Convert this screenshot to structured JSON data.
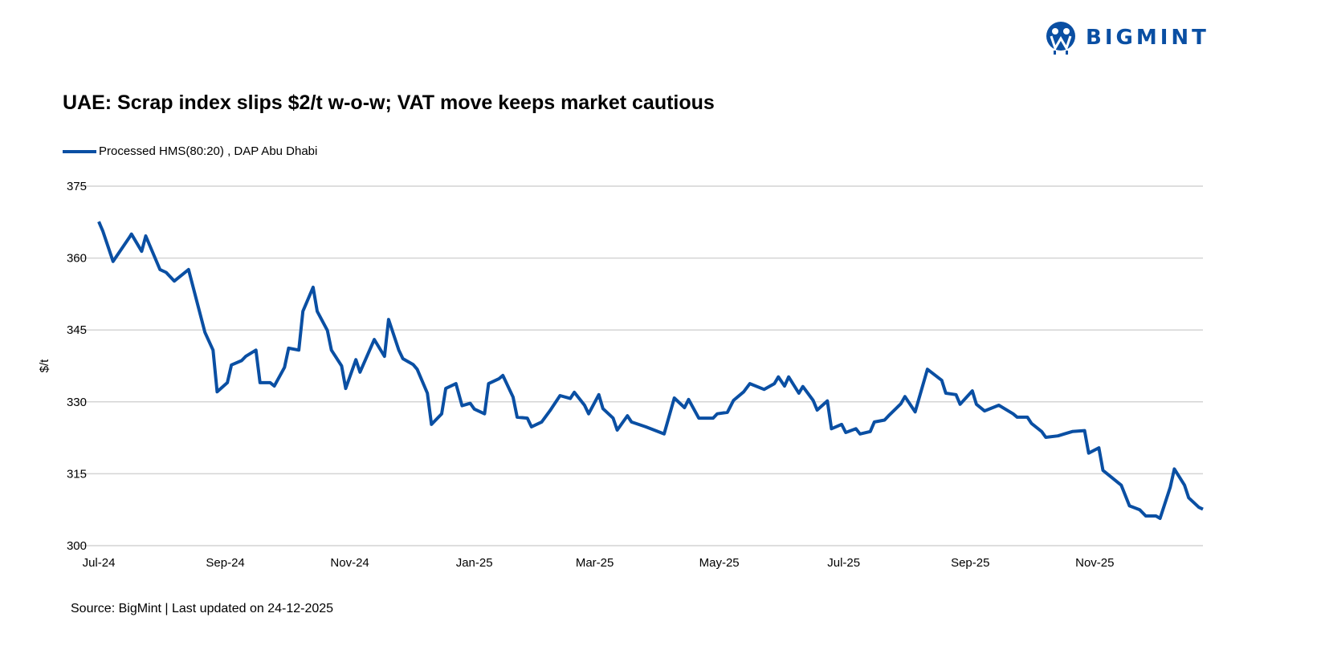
{
  "logo": {
    "text": "BIGMINT",
    "color": "#0a4fa3"
  },
  "source": "Source: BigMint | Last updated on 24-12-2025",
  "chart_data": {
    "type": "line",
    "title": "UAE: Scrap index slips $2/t w-o-w; VAT move keeps market cautious",
    "xlabel": "",
    "ylabel": "$/t",
    "ylim": [
      300,
      375
    ],
    "xlim": [
      "2024-07-01",
      "2025-12-24"
    ],
    "yticks": [
      "300",
      "315",
      "330",
      "345",
      "360",
      "375"
    ],
    "xticks": [
      {
        "date": "2024-07-01",
        "label": "Jul-24"
      },
      {
        "date": "2024-09-01",
        "label": "Sep-24"
      },
      {
        "date": "2024-11-01",
        "label": "Nov-24"
      },
      {
        "date": "2025-01-01",
        "label": "Jan-25"
      },
      {
        "date": "2025-03-01",
        "label": "Mar-25"
      },
      {
        "date": "2025-05-01",
        "label": "May-25"
      },
      {
        "date": "2025-07-01",
        "label": "Jul-25"
      },
      {
        "date": "2025-09-01",
        "label": "Sep-25"
      },
      {
        "date": "2025-11-01",
        "label": "Nov-25"
      }
    ],
    "grid": true,
    "legend_position": "top-left",
    "series": [
      {
        "name": "Processed HMS(80:20) , DAP Abu Dhabi",
        "color": "#0a4fa3",
        "points": [
          [
            "2024-07-01",
            367.6
          ],
          [
            "2024-07-03",
            365.6
          ],
          [
            "2024-07-08",
            359.3
          ],
          [
            "2024-07-16",
            364.3
          ],
          [
            "2024-07-17",
            365
          ],
          [
            "2024-07-22",
            361.4
          ],
          [
            "2024-07-24",
            364.6
          ],
          [
            "2024-07-31",
            357.6
          ],
          [
            "2024-08-03",
            357
          ],
          [
            "2024-08-07",
            355.2
          ],
          [
            "2024-08-14",
            357.6
          ],
          [
            "2024-08-22",
            344.5
          ],
          [
            "2024-08-26",
            340.8
          ],
          [
            "2024-08-28",
            332.1
          ],
          [
            "2024-09-02",
            334
          ],
          [
            "2024-09-04",
            337.7
          ],
          [
            "2024-09-09",
            338.6
          ],
          [
            "2024-09-11",
            339.5
          ],
          [
            "2024-09-16",
            340.8
          ],
          [
            "2024-09-18",
            334
          ],
          [
            "2024-09-23",
            334
          ],
          [
            "2024-09-25",
            333.3
          ],
          [
            "2024-09-30",
            337.2
          ],
          [
            "2024-10-02",
            341.2
          ],
          [
            "2024-10-07",
            340.8
          ],
          [
            "2024-10-09",
            348.9
          ],
          [
            "2024-10-14",
            353.9
          ],
          [
            "2024-10-16",
            348.9
          ],
          [
            "2024-10-21",
            344.9
          ],
          [
            "2024-10-23",
            340.8
          ],
          [
            "2024-10-28",
            337.5
          ],
          [
            "2024-10-30",
            332.8
          ],
          [
            "2024-11-04",
            338.8
          ],
          [
            "2024-11-06",
            336.2
          ],
          [
            "2024-11-13",
            343
          ],
          [
            "2024-11-18",
            339.5
          ],
          [
            "2024-11-20",
            347.2
          ],
          [
            "2024-11-25",
            340.8
          ],
          [
            "2024-11-27",
            339
          ],
          [
            "2024-12-02",
            337.8
          ],
          [
            "2024-12-04",
            336.8
          ],
          [
            "2024-12-09",
            331.8
          ],
          [
            "2024-12-11",
            325.3
          ],
          [
            "2024-12-16",
            327.5
          ],
          [
            "2024-12-18",
            332.8
          ],
          [
            "2024-12-23",
            333.8
          ],
          [
            "2024-12-26",
            329.2
          ],
          [
            "2024-12-30",
            329.7
          ],
          [
            "2025-01-01",
            328.5
          ],
          [
            "2025-01-06",
            327.5
          ],
          [
            "2025-01-08",
            333.8
          ],
          [
            "2025-01-13",
            334.8
          ],
          [
            "2025-01-15",
            335.5
          ],
          [
            "2025-01-20",
            331
          ],
          [
            "2025-01-22",
            326.8
          ],
          [
            "2025-01-27",
            326.6
          ],
          [
            "2025-01-29",
            324.8
          ],
          [
            "2025-02-03",
            325.8
          ],
          [
            "2025-02-07",
            328.1
          ],
          [
            "2025-02-12",
            331.3
          ],
          [
            "2025-02-17",
            330.7
          ],
          [
            "2025-02-19",
            332
          ],
          [
            "2025-02-24",
            329.3
          ],
          [
            "2025-02-26",
            327.5
          ],
          [
            "2025-03-03",
            331.5
          ],
          [
            "2025-03-05",
            328.6
          ],
          [
            "2025-03-10",
            326.6
          ],
          [
            "2025-03-12",
            324.1
          ],
          [
            "2025-03-17",
            327.1
          ],
          [
            "2025-03-19",
            325.8
          ],
          [
            "2025-03-26",
            324.8
          ],
          [
            "2025-04-04",
            323.3
          ],
          [
            "2025-04-09",
            330.8
          ],
          [
            "2025-04-14",
            328.8
          ],
          [
            "2025-04-16",
            330.5
          ],
          [
            "2025-04-21",
            326.6
          ],
          [
            "2025-04-28",
            326.6
          ],
          [
            "2025-04-30",
            327.5
          ],
          [
            "2025-05-05",
            327.8
          ],
          [
            "2025-05-08",
            330.3
          ],
          [
            "2025-05-13",
            332.1
          ],
          [
            "2025-05-16",
            333.8
          ],
          [
            "2025-05-23",
            332.6
          ],
          [
            "2025-05-28",
            333.8
          ],
          [
            "2025-05-30",
            335.2
          ],
          [
            "2025-06-02",
            333.3
          ],
          [
            "2025-06-04",
            335.2
          ],
          [
            "2025-06-09",
            331.8
          ],
          [
            "2025-06-11",
            333.2
          ],
          [
            "2025-06-16",
            330.3
          ],
          [
            "2025-06-18",
            328.3
          ],
          [
            "2025-06-23",
            330.2
          ],
          [
            "2025-06-25",
            324.4
          ],
          [
            "2025-06-30",
            325.3
          ],
          [
            "2025-07-02",
            323.6
          ],
          [
            "2025-07-07",
            324.4
          ],
          [
            "2025-07-09",
            323.3
          ],
          [
            "2025-07-14",
            323.8
          ],
          [
            "2025-07-16",
            325.8
          ],
          [
            "2025-07-21",
            326.2
          ],
          [
            "2025-07-23",
            327.1
          ],
          [
            "2025-07-29",
            329.6
          ],
          [
            "2025-07-31",
            331.1
          ],
          [
            "2025-08-05",
            327.9
          ],
          [
            "2025-08-11",
            336.8
          ],
          [
            "2025-08-18",
            334.5
          ],
          [
            "2025-08-20",
            331.8
          ],
          [
            "2025-08-25",
            331.5
          ],
          [
            "2025-08-27",
            329.5
          ],
          [
            "2025-09-02",
            332.3
          ],
          [
            "2025-09-04",
            329.5
          ],
          [
            "2025-09-08",
            328.1
          ],
          [
            "2025-09-15",
            329.3
          ],
          [
            "2025-09-22",
            327.5
          ],
          [
            "2025-09-24",
            326.8
          ],
          [
            "2025-09-29",
            326.8
          ],
          [
            "2025-10-01",
            325.5
          ],
          [
            "2025-10-06",
            323.8
          ],
          [
            "2025-10-08",
            322.6
          ],
          [
            "2025-10-14",
            322.9
          ],
          [
            "2025-10-17",
            323.3
          ],
          [
            "2025-10-21",
            323.8
          ],
          [
            "2025-10-27",
            324
          ],
          [
            "2025-10-29",
            319.3
          ],
          [
            "2025-11-03",
            320.4
          ],
          [
            "2025-11-05",
            315.7
          ],
          [
            "2025-11-14",
            312.6
          ],
          [
            "2025-11-18",
            308.3
          ],
          [
            "2025-11-23",
            307.5
          ],
          [
            "2025-11-26",
            306.2
          ],
          [
            "2025-12-01",
            306.2
          ],
          [
            "2025-12-03",
            305.7
          ],
          [
            "2025-12-08",
            312.2
          ],
          [
            "2025-12-10",
            316
          ],
          [
            "2025-12-15",
            312.6
          ],
          [
            "2025-12-17",
            310
          ],
          [
            "2025-12-22",
            308
          ],
          [
            "2025-12-24",
            307.6
          ]
        ]
      }
    ]
  }
}
